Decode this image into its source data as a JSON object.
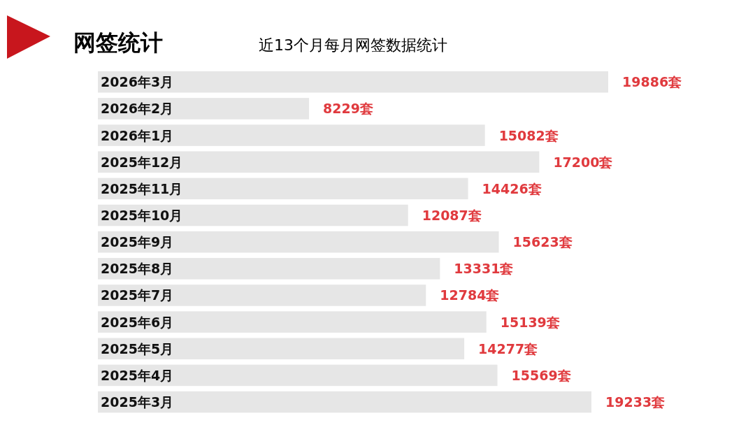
{
  "chart_data": {
    "type": "bar",
    "orientation": "horizontal",
    "title": "网签统计",
    "subtitle": "近13个月每月网签数据统计",
    "categories": [
      "2026年3月",
      "2026年2月",
      "2026年1月",
      "2025年12月",
      "2025年11月",
      "2025年10月",
      "2025年9月",
      "2025年8月",
      "2025年7月",
      "2025年6月",
      "2025年5月",
      "2025年4月",
      "2025年3月"
    ],
    "values": [
      19886,
      8229,
      15082,
      17200,
      14426,
      12087,
      15623,
      13331,
      12784,
      15139,
      14277,
      15569,
      19233
    ],
    "value_labels": [
      "19886套",
      "8229套",
      "15082套",
      "17200套",
      "14426套",
      "12087套",
      "15623套",
      "13331套",
      "12784套",
      "15139套",
      "14277套",
      "15569套",
      "19233套"
    ],
    "color": "#e6e6e6"
  }
}
